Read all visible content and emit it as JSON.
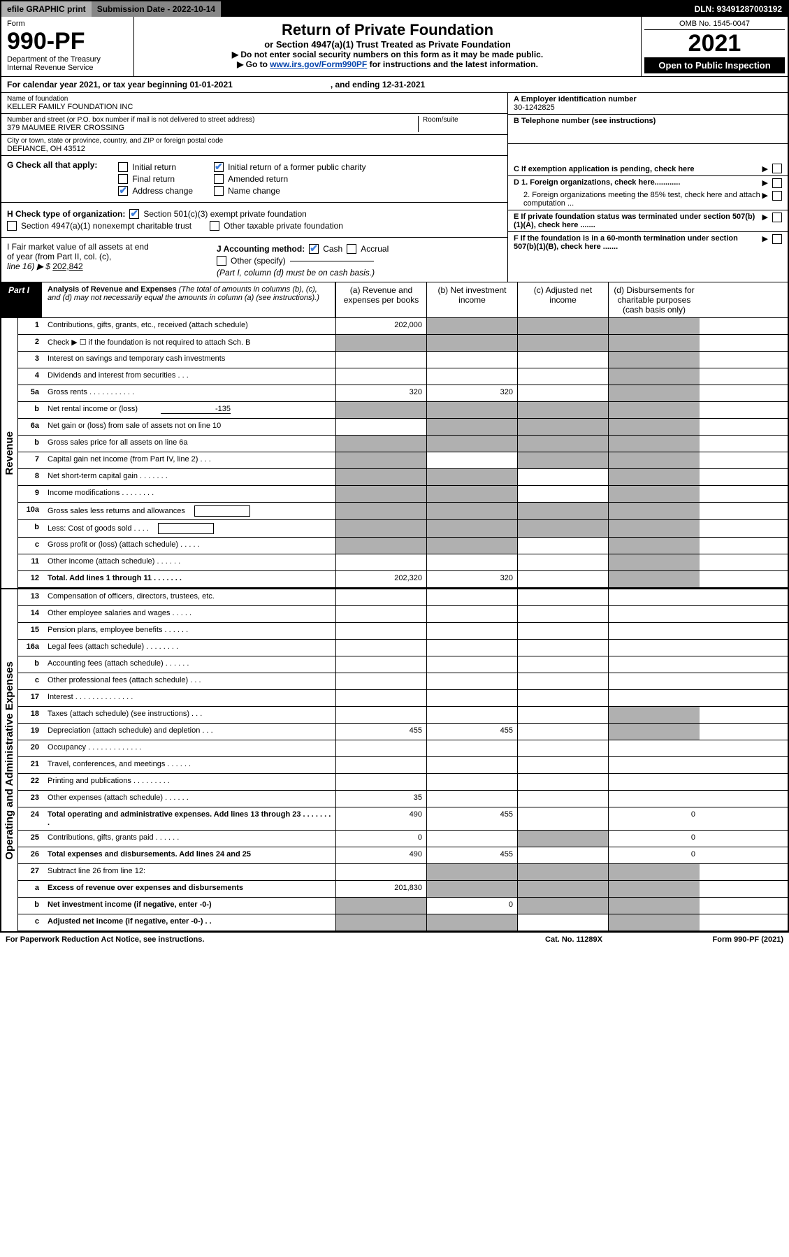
{
  "topbar": {
    "efile": "efile GRAPHIC print",
    "submission_label": "Submission Date - 2022-10-14",
    "dln": "DLN: 93491287003192"
  },
  "header": {
    "form_label": "Form",
    "form_number": "990-PF",
    "dept1": "Department of the Treasury",
    "dept2": "Internal Revenue Service",
    "title": "Return of Private Foundation",
    "subtitle": "or Section 4947(a)(1) Trust Treated as Private Foundation",
    "note1": "▶ Do not enter social security numbers on this form as it may be made public.",
    "note2_pre": "▶ Go to ",
    "note2_link": "www.irs.gov/Form990PF",
    "note2_post": " for instructions and the latest information.",
    "omb": "OMB No. 1545-0047",
    "year": "2021",
    "open_public": "Open to Public Inspection"
  },
  "calendar_line_pre": "For calendar year 2021, or tax year beginning 01-01-2021",
  "calendar_line_post": ", and ending 12-31-2021",
  "info_left": {
    "name_label": "Name of foundation",
    "name": "KELLER FAMILY FOUNDATION INC",
    "street_label": "Number and street (or P.O. box number if mail is not delivered to street address)",
    "street": "379 MAUMEE RIVER CROSSING",
    "room_label": "Room/suite",
    "city_label": "City or town, state or province, country, and ZIP or foreign postal code",
    "city": "DEFIANCE, OH  43512"
  },
  "info_right": {
    "a_label": "A Employer identification number",
    "a_value": "30-1242825",
    "b_label": "B Telephone number (see instructions)",
    "c_label": "C If exemption application is pending, check here",
    "d1_label": "D 1. Foreign organizations, check here............",
    "d2_label": "2. Foreign organizations meeting the 85% test, check here and attach computation ...",
    "e_label": "E If private foundation status was terminated under section 507(b)(1)(A), check here .......",
    "f_label": "F If the foundation is in a 60-month termination under section 507(b)(1)(B), check here .......",
    "arrow": "▶"
  },
  "section_g": {
    "label": "G Check all that apply:",
    "initial_return": "Initial return",
    "initial_former": "Initial return of a former public charity",
    "final_return": "Final return",
    "amended_return": "Amended return",
    "address_change": "Address change",
    "name_change": "Name change"
  },
  "section_h": {
    "label": "H Check type of organization:",
    "opt1": "Section 501(c)(3) exempt private foundation",
    "opt2": "Section 4947(a)(1) nonexempt charitable trust",
    "opt3": "Other taxable private foundation"
  },
  "section_i": {
    "label_line1": "I Fair market value of all assets at end",
    "label_line2": "of year (from Part II, col. (c),",
    "label_line3": "line 16) ▶ $",
    "value": "202,842"
  },
  "section_j": {
    "label": "J Accounting method:",
    "cash": "Cash",
    "accrual": "Accrual",
    "other": "Other (specify)",
    "note": "(Part I, column (d) must be on cash basis.)"
  },
  "part1": {
    "label": "Part I",
    "title": "Analysis of Revenue and Expenses",
    "title_note": " (The total of amounts in columns (b), (c), and (d) may not necessarily equal the amounts in column (a) (see instructions).)",
    "col_a": "(a) Revenue and expenses per books",
    "col_b": "(b) Net investment income",
    "col_c": "(c) Adjusted net income",
    "col_d": "(d) Disbursements for charitable purposes (cash basis only)"
  },
  "revenue_label": "Revenue",
  "opex_label": "Operating and Administrative Expenses",
  "lines": [
    {
      "num": "1",
      "desc": "Contributions, gifts, grants, etc., received (attach schedule)",
      "a": "202,000",
      "b_gray": true,
      "c_gray": true,
      "d_gray": true
    },
    {
      "num": "2",
      "desc": "Check ▶ ☐ if the foundation is not required to attach Sch. B",
      "a_gray": true,
      "b_gray": true,
      "c_gray": true,
      "d_gray": true,
      "dots": true
    },
    {
      "num": "3",
      "desc": "Interest on savings and temporary cash investments",
      "d_gray": true
    },
    {
      "num": "4",
      "desc": "Dividends and interest from securities   .   .   .",
      "d_gray": true
    },
    {
      "num": "5a",
      "desc": "Gross rents   .   .   .   .   .   .   .   .   .   .   .",
      "a": "320",
      "b": "320",
      "d_gray": true
    },
    {
      "num": "b",
      "desc": "Net rental income or (loss)",
      "inline_val": "-135",
      "a_gray": true,
      "b_gray": true,
      "c_gray": true,
      "d_gray": true
    },
    {
      "num": "6a",
      "desc": "Net gain or (loss) from sale of assets not on line 10",
      "b_gray": true,
      "c_gray": true,
      "d_gray": true
    },
    {
      "num": "b",
      "desc": "Gross sales price for all assets on line 6a",
      "underline": true,
      "a_gray": true,
      "b_gray": true,
      "c_gray": true,
      "d_gray": true
    },
    {
      "num": "7",
      "desc": "Capital gain net income (from Part IV, line 2)   .   .   .",
      "a_gray": true,
      "c_gray": true,
      "d_gray": true
    },
    {
      "num": "8",
      "desc": "Net short-term capital gain   .   .   .   .   .   .   .",
      "a_gray": true,
      "b_gray": true,
      "d_gray": true
    },
    {
      "num": "9",
      "desc": "Income modifications   .   .   .   .   .   .   .   .",
      "a_gray": true,
      "b_gray": true,
      "d_gray": true
    },
    {
      "num": "10a",
      "desc": "Gross sales less returns and allowances",
      "box": true,
      "a_gray": true,
      "b_gray": true,
      "c_gray": true,
      "d_gray": true
    },
    {
      "num": "b",
      "desc": "Less: Cost of goods sold   .   .   .   .",
      "box": true,
      "a_gray": true,
      "b_gray": true,
      "c_gray": true,
      "d_gray": true
    },
    {
      "num": "c",
      "desc": "Gross profit or (loss) (attach schedule)   .   .   .   .   .",
      "a_gray": true,
      "b_gray": true,
      "d_gray": true
    },
    {
      "num": "11",
      "desc": "Other income (attach schedule)   .   .   .   .   .   .",
      "d_gray": true
    },
    {
      "num": "12",
      "desc": "Total. Add lines 1 through 11   .   .   .   .   .   .   .",
      "bold": true,
      "a": "202,320",
      "b": "320",
      "d_gray": true
    }
  ],
  "opex_lines": [
    {
      "num": "13",
      "desc": "Compensation of officers, directors, trustees, etc."
    },
    {
      "num": "14",
      "desc": "Other employee salaries and wages   .   .   .   .   ."
    },
    {
      "num": "15",
      "desc": "Pension plans, employee benefits   .   .   .   .   .   ."
    },
    {
      "num": "16a",
      "desc": "Legal fees (attach schedule)   .   .   .   .   .   .   .   ."
    },
    {
      "num": "b",
      "desc": "Accounting fees (attach schedule)   .   .   .   .   .   ."
    },
    {
      "num": "c",
      "desc": "Other professional fees (attach schedule)   .   .   ."
    },
    {
      "num": "17",
      "desc": "Interest   .   .   .   .   .   .   .   .   .   .   .   .   .   ."
    },
    {
      "num": "18",
      "desc": "Taxes (attach schedule) (see instructions)   .   .   .",
      "d_gray": true
    },
    {
      "num": "19",
      "desc": "Depreciation (attach schedule) and depletion   .   .   .",
      "a": "455",
      "b": "455",
      "d_gray": true
    },
    {
      "num": "20",
      "desc": "Occupancy   .   .   .   .   .   .   .   .   .   .   .   .   ."
    },
    {
      "num": "21",
      "desc": "Travel, conferences, and meetings   .   .   .   .   .   ."
    },
    {
      "num": "22",
      "desc": "Printing and publications   .   .   .   .   .   .   .   .   ."
    },
    {
      "num": "23",
      "desc": "Other expenses (attach schedule)   .   .   .   .   .   .",
      "a": "35"
    },
    {
      "num": "24",
      "desc": "Total operating and administrative expenses. Add lines 13 through 23   .   .   .   .   .   .   .   .",
      "bold": true,
      "a": "490",
      "b": "455",
      "d": "0"
    },
    {
      "num": "25",
      "desc": "Contributions, gifts, grants paid   .   .   .   .   .   .",
      "a": "0",
      "c_gray": true,
      "d": "0"
    },
    {
      "num": "26",
      "desc": "Total expenses and disbursements. Add lines 24 and 25",
      "bold": true,
      "a": "490",
      "b": "455",
      "d": "0"
    },
    {
      "num": "27",
      "desc": "Subtract line 26 from line 12:",
      "b_gray": true,
      "c_gray": true,
      "d_gray": true
    },
    {
      "num": "a",
      "desc": "Excess of revenue over expenses and disbursements",
      "bold": true,
      "a": "201,830",
      "b_gray": true,
      "c_gray": true,
      "d_gray": true
    },
    {
      "num": "b",
      "desc": "Net investment income (if negative, enter -0-)",
      "bold": true,
      "a_gray": true,
      "b": "0",
      "c_gray": true,
      "d_gray": true
    },
    {
      "num": "c",
      "desc": "Adjusted net income (if negative, enter -0-)   .   .",
      "bold": true,
      "a_gray": true,
      "b_gray": true,
      "d_gray": true
    }
  ],
  "footer": {
    "left": "For Paperwork Reduction Act Notice, see instructions.",
    "mid": "Cat. No. 11289X",
    "right": "Form 990-PF (2021)"
  }
}
